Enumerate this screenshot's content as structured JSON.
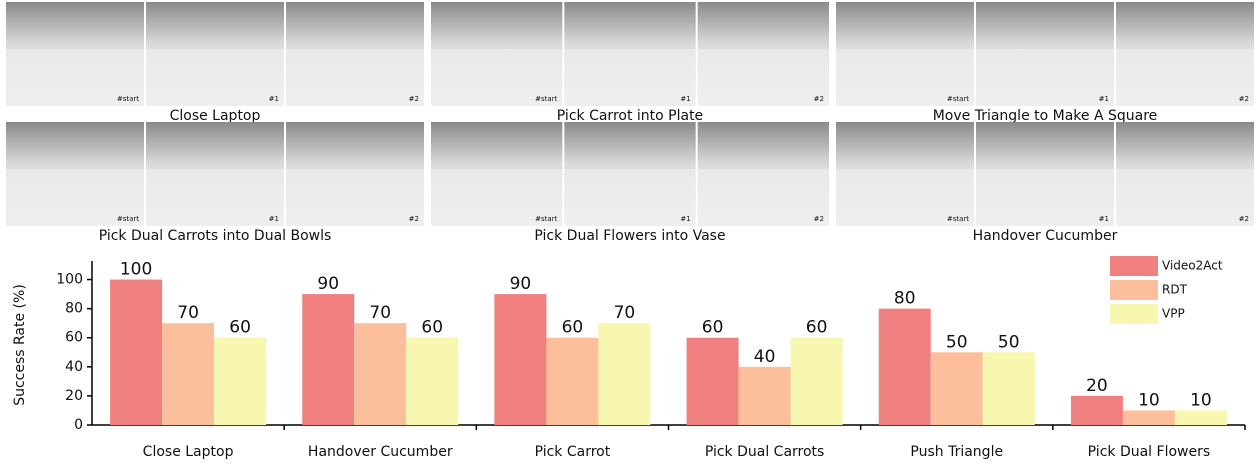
{
  "panels": [
    {
      "caption": "Close Laptop"
    },
    {
      "caption": "Pick Carrot into Plate"
    },
    {
      "caption": "Move Triangle to Make A Square"
    },
    {
      "caption": "Pick Dual Carrots into Dual Bowls"
    },
    {
      "caption": "Pick Dual Flowers into Vase"
    },
    {
      "caption": "Handover Cucumber"
    }
  ],
  "frame_labels": [
    "#start",
    "#1",
    "#2"
  ],
  "chart_data": {
    "type": "bar",
    "y_label": "Success Rate (%)",
    "categories": [
      "Close Laptop",
      "Handover Cucumber",
      "Pick Carrot",
      "Pick Dual Carrots",
      "Push Triangle",
      "Pick Dual Flowers"
    ],
    "series": [
      {
        "name": "Video2Act",
        "color": "#f08080",
        "values": [
          100,
          90,
          90,
          60,
          80,
          20
        ]
      },
      {
        "name": "RDT",
        "color": "#fdbf9b",
        "values": [
          70,
          70,
          60,
          40,
          50,
          10
        ]
      },
      {
        "name": "VPP",
        "color": "#f7f7b0",
        "values": [
          60,
          60,
          70,
          60,
          50,
          10
        ]
      }
    ],
    "ylim": [
      0,
      110
    ],
    "yticks": [
      0,
      20,
      40,
      60,
      80,
      100
    ],
    "legend": "upper right"
  }
}
